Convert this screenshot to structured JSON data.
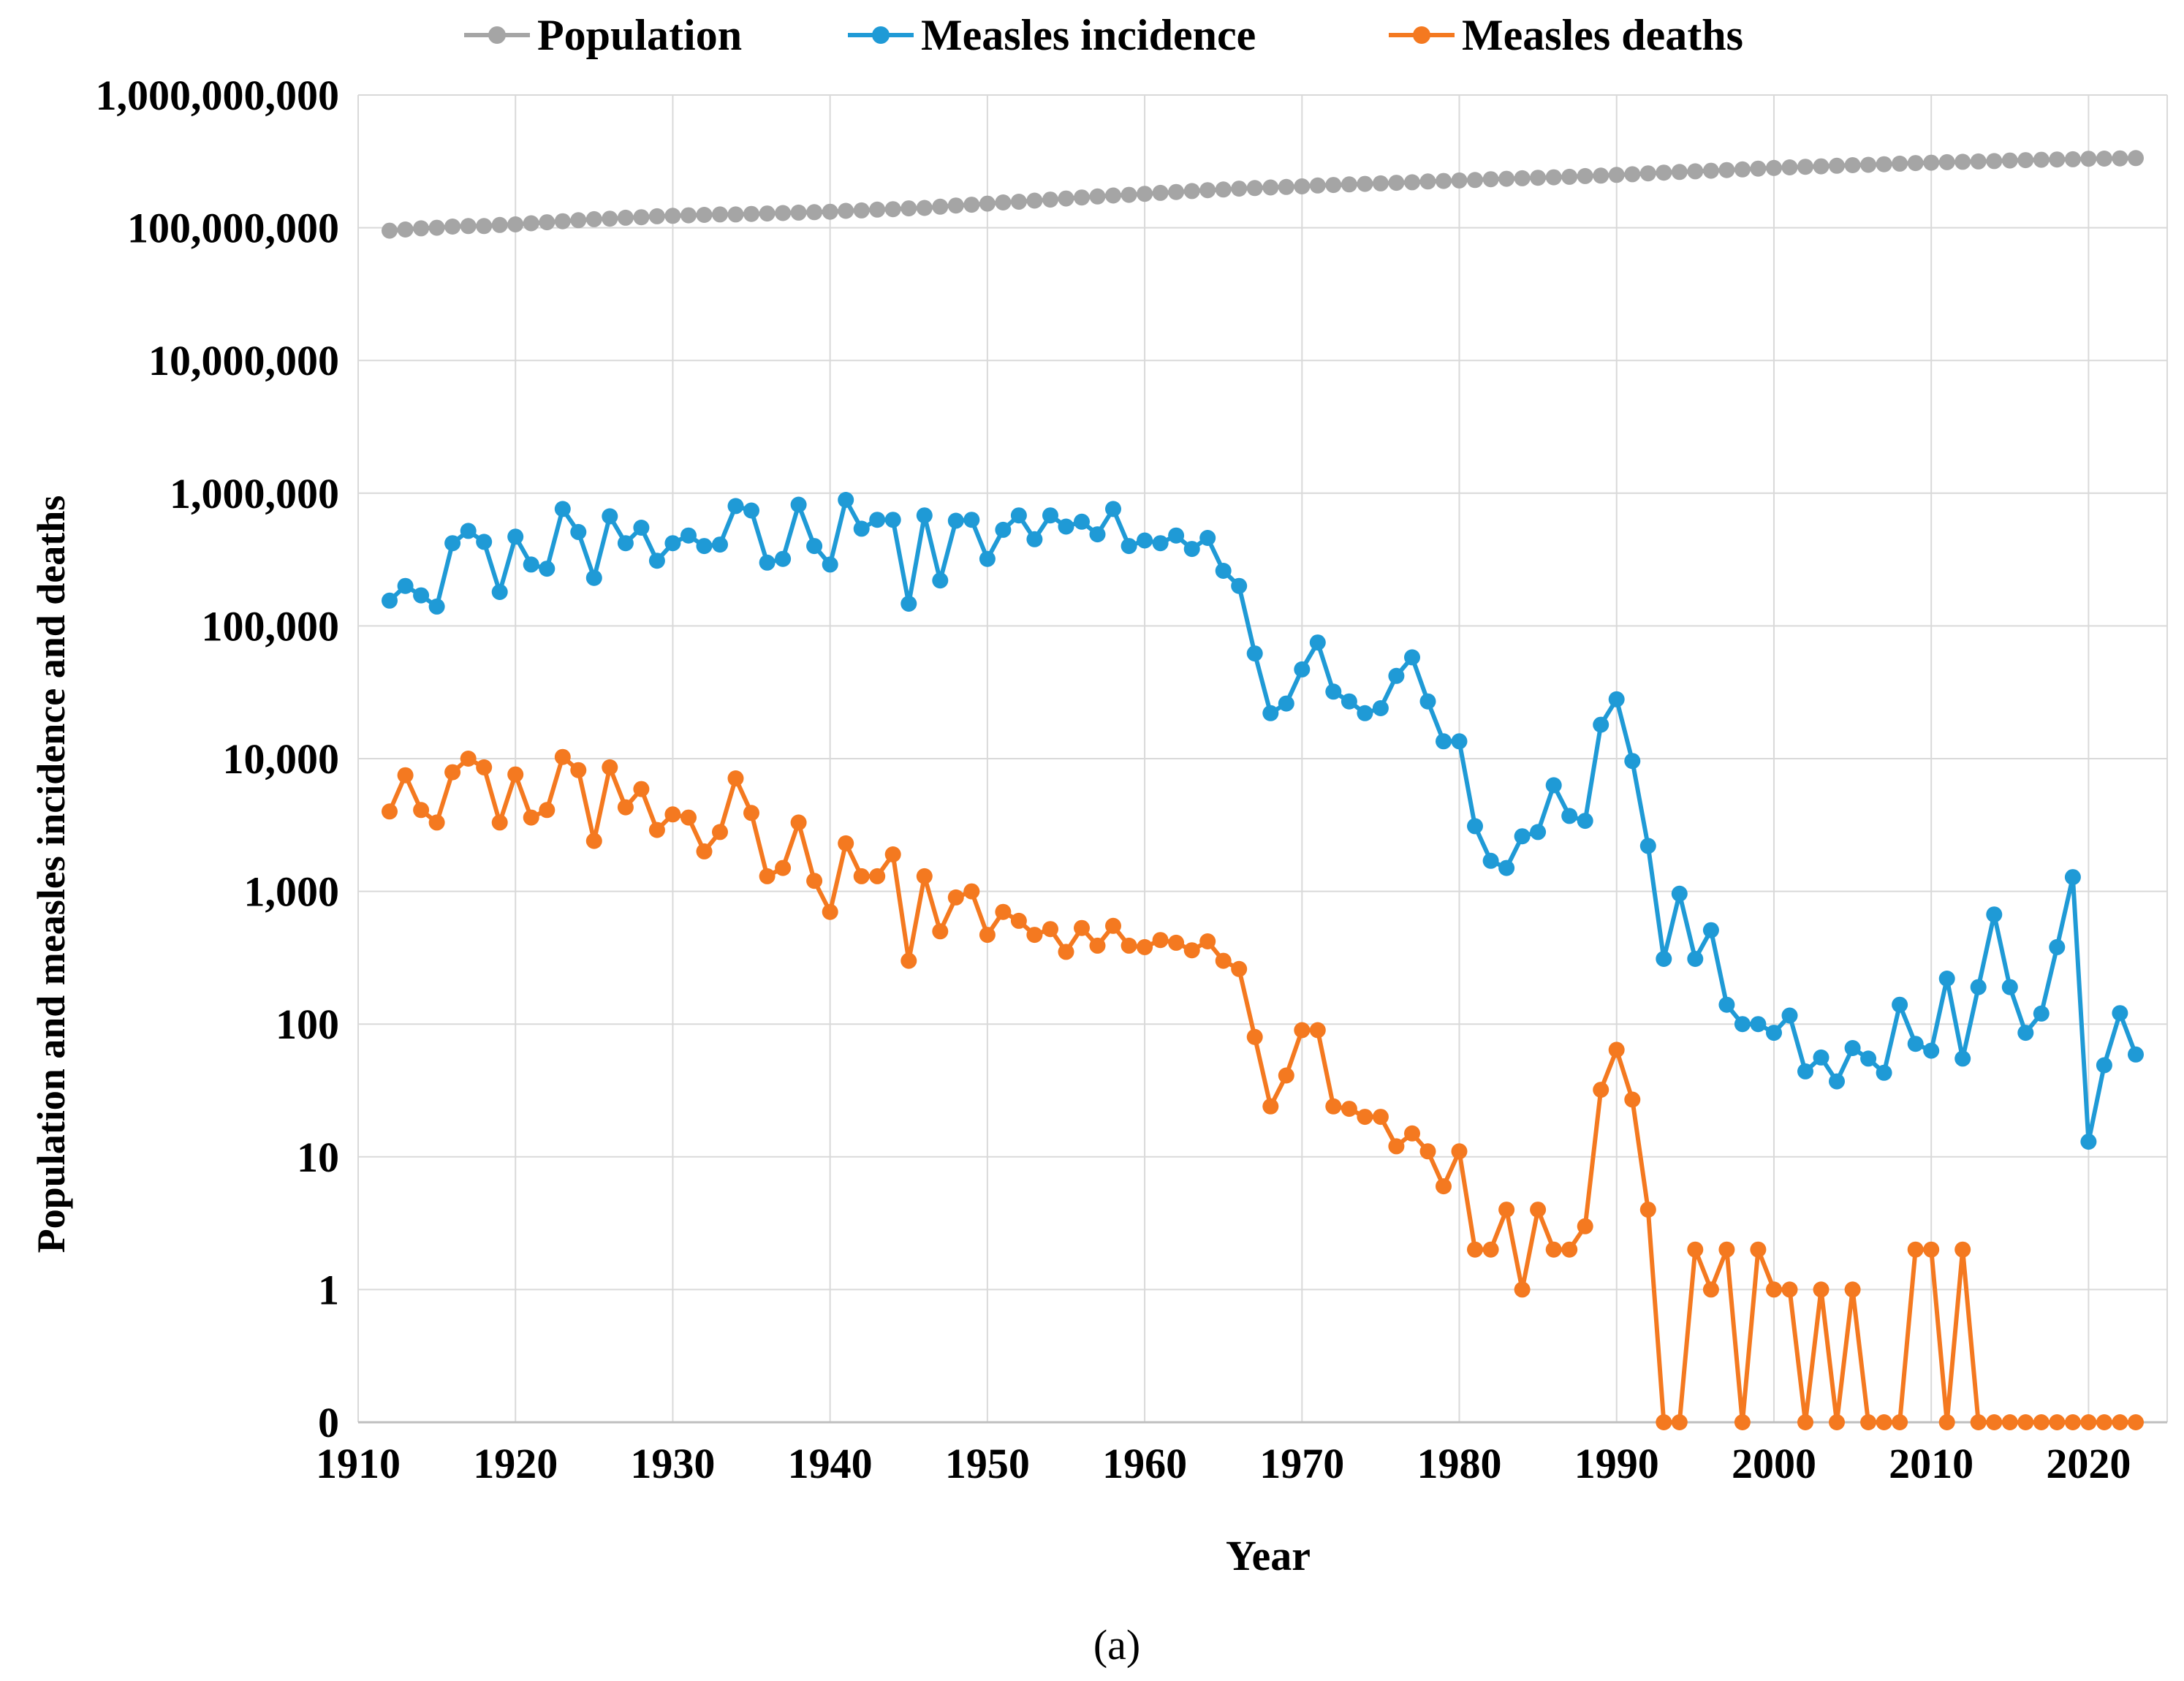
{
  "chart_data": {
    "type": "line",
    "title": "",
    "xlabel": "Year",
    "ylabel": "Population and measles incidence and deaths",
    "caption": "(a)",
    "xlim": [
      1910,
      2025
    ],
    "x_ticks": [
      1910,
      1920,
      1930,
      1940,
      1950,
      1960,
      1970,
      1980,
      1990,
      2000,
      2010,
      2020
    ],
    "y_scale": "log",
    "ylim": [
      0,
      1000000000
    ],
    "y_ticks": [
      {
        "value": 0,
        "label": "0"
      },
      {
        "value": 1,
        "label": "1"
      },
      {
        "value": 10,
        "label": "10"
      },
      {
        "value": 100,
        "label": "100"
      },
      {
        "value": 1000,
        "label": "1,000"
      },
      {
        "value": 10000,
        "label": "10,000"
      },
      {
        "value": 100000,
        "label": "100,000"
      },
      {
        "value": 1000000,
        "label": "1,000,000"
      },
      {
        "value": 10000000,
        "label": "10,000,000"
      },
      {
        "value": 100000000,
        "label": "100,000,000"
      },
      {
        "value": 1000000000,
        "label": "1,000,000,000"
      }
    ],
    "grid": true,
    "legend_position": "top",
    "x": [
      1912,
      1913,
      1914,
      1915,
      1916,
      1917,
      1918,
      1919,
      1920,
      1921,
      1922,
      1923,
      1924,
      1925,
      1926,
      1927,
      1928,
      1929,
      1930,
      1931,
      1932,
      1933,
      1934,
      1935,
      1936,
      1937,
      1938,
      1939,
      1940,
      1941,
      1942,
      1943,
      1944,
      1945,
      1946,
      1947,
      1948,
      1949,
      1950,
      1951,
      1952,
      1953,
      1954,
      1955,
      1956,
      1957,
      1958,
      1959,
      1960,
      1961,
      1962,
      1963,
      1964,
      1965,
      1966,
      1967,
      1968,
      1969,
      1970,
      1971,
      1972,
      1973,
      1974,
      1975,
      1976,
      1977,
      1978,
      1979,
      1980,
      1981,
      1982,
      1983,
      1984,
      1985,
      1986,
      1987,
      1988,
      1989,
      1990,
      1991,
      1992,
      1993,
      1994,
      1995,
      1996,
      1997,
      1998,
      1999,
      2000,
      2001,
      2002,
      2003,
      2004,
      2005,
      2006,
      2007,
      2008,
      2009,
      2010,
      2011,
      2012,
      2013,
      2014,
      2015,
      2016,
      2017,
      2018,
      2019,
      2020,
      2021,
      2022,
      2023
    ],
    "series": [
      {
        "name": "Population",
        "color": "#a5a5a5",
        "values": [
          95000000,
          97000000,
          99000000,
          100000000,
          102000000,
          103000000,
          103000000,
          105000000,
          106000000,
          108000000,
          110000000,
          112000000,
          114000000,
          116000000,
          117000000,
          119000000,
          120000000,
          122000000,
          123000000,
          124000000,
          125000000,
          126000000,
          126000000,
          127000000,
          128000000,
          129000000,
          130000000,
          131000000,
          132000000,
          134000000,
          135000000,
          137000000,
          138000000,
          140000000,
          141000000,
          144000000,
          147000000,
          149000000,
          152000000,
          155000000,
          157000000,
          160000000,
          163000000,
          166000000,
          169000000,
          172000000,
          175000000,
          177000000,
          180000000,
          183000000,
          186000000,
          189000000,
          192000000,
          194000000,
          197000000,
          199000000,
          201000000,
          203000000,
          205000000,
          208000000,
          210000000,
          212000000,
          214000000,
          216000000,
          218000000,
          220000000,
          223000000,
          225000000,
          227000000,
          229000000,
          232000000,
          234000000,
          236000000,
          238000000,
          240000000,
          242000000,
          245000000,
          247000000,
          250000000,
          253000000,
          257000000,
          260000000,
          263000000,
          266000000,
          269000000,
          272000000,
          275000000,
          279000000,
          282000000,
          285000000,
          288000000,
          290000000,
          293000000,
          296000000,
          298000000,
          301000000,
          304000000,
          307000000,
          309000000,
          312000000,
          314000000,
          316000000,
          318000000,
          321000000,
          323000000,
          325000000,
          327000000,
          328000000,
          331000000,
          332000000,
          333000000,
          335000000
        ]
      },
      {
        "name": "Measles incidence",
        "color": "#1f9ad6",
        "values": [
          155000,
          200000,
          170000,
          140000,
          420000,
          520000,
          430000,
          180000,
          470000,
          290000,
          270000,
          760000,
          510000,
          230000,
          670000,
          420000,
          550000,
          310000,
          420000,
          480000,
          400000,
          410000,
          800000,
          740000,
          300000,
          320000,
          820000,
          400000,
          290000,
          890000,
          540000,
          630000,
          630000,
          147000,
          680000,
          220000,
          620000,
          630000,
          320000,
          530000,
          680000,
          450000,
          680000,
          560000,
          610000,
          490000,
          760000,
          400000,
          440000,
          420000,
          480000,
          380000,
          460000,
          260000,
          200000,
          62000,
          22000,
          26000,
          47000,
          75000,
          32000,
          27000,
          22000,
          24000,
          42000,
          58000,
          27000,
          13500,
          13500,
          3100,
          1700,
          1500,
          2600,
          2800,
          6300,
          3700,
          3400,
          18000,
          28000,
          9600,
          2200,
          310,
          960,
          310,
          510,
          140,
          100,
          100,
          86,
          116,
          44,
          56,
          37,
          66,
          55,
          43,
          140,
          71,
          63,
          220,
          55,
          190,
          670,
          190,
          86,
          120,
          380,
          1280,
          13,
          49,
          121,
          59
        ]
      },
      {
        "name": "Measles deaths",
        "color": "#f47920",
        "values": [
          4000,
          7500,
          4100,
          3300,
          7900,
          10000,
          8600,
          3300,
          7600,
          3600,
          4100,
          10300,
          8200,
          2400,
          8600,
          4300,
          5900,
          2900,
          3800,
          3600,
          2000,
          2800,
          7100,
          3900,
          1300,
          1500,
          3300,
          1200,
          700,
          2300,
          1300,
          1300,
          1900,
          300,
          1300,
          500,
          900,
          1000,
          470,
          700,
          600,
          470,
          520,
          350,
          530,
          390,
          550,
          390,
          380,
          430,
          410,
          360,
          420,
          300,
          260,
          80,
          24,
          41,
          90,
          90,
          24,
          23,
          20,
          20,
          12,
          15,
          11,
          6,
          11,
          2,
          2,
          4,
          1,
          4,
          2,
          2,
          3,
          32,
          64,
          27,
          4,
          0,
          0,
          2,
          1,
          2,
          0,
          2,
          1,
          1,
          0,
          1,
          0,
          1,
          0,
          0,
          0,
          2,
          2,
          0,
          2,
          0,
          0,
          0,
          0,
          0,
          0,
          0,
          0,
          0,
          0,
          0
        ]
      }
    ]
  }
}
